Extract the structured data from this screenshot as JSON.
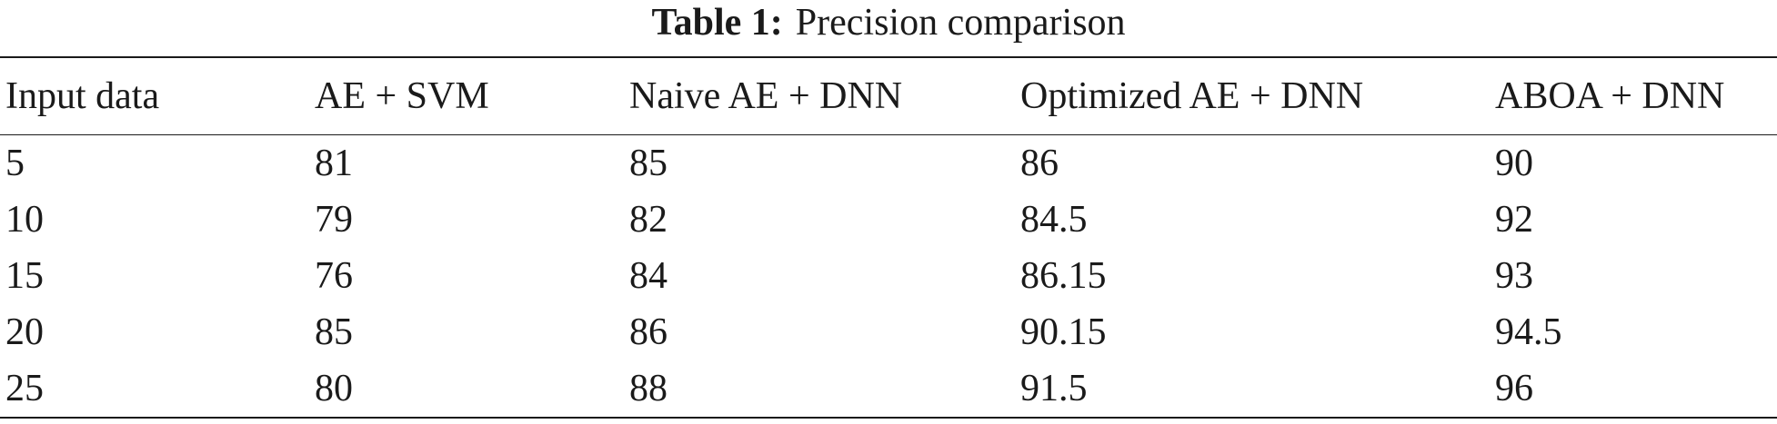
{
  "caption": {
    "label": "Table 1:",
    "text": "Precision comparison"
  },
  "table": {
    "headers": [
      "Input data",
      "AE + SVM",
      "Naive AE + DNN",
      "Optimized AE + DNN",
      "ABOA + DNN"
    ],
    "rows": [
      [
        "5",
        "81",
        "85",
        "86",
        "90"
      ],
      [
        "10",
        "79",
        "82",
        "84.5",
        "92"
      ],
      [
        "15",
        "76",
        "84",
        "86.15",
        "93"
      ],
      [
        "20",
        "85",
        "86",
        "90.15",
        "94.5"
      ],
      [
        "25",
        "80",
        "88",
        "91.5",
        "96"
      ]
    ]
  }
}
